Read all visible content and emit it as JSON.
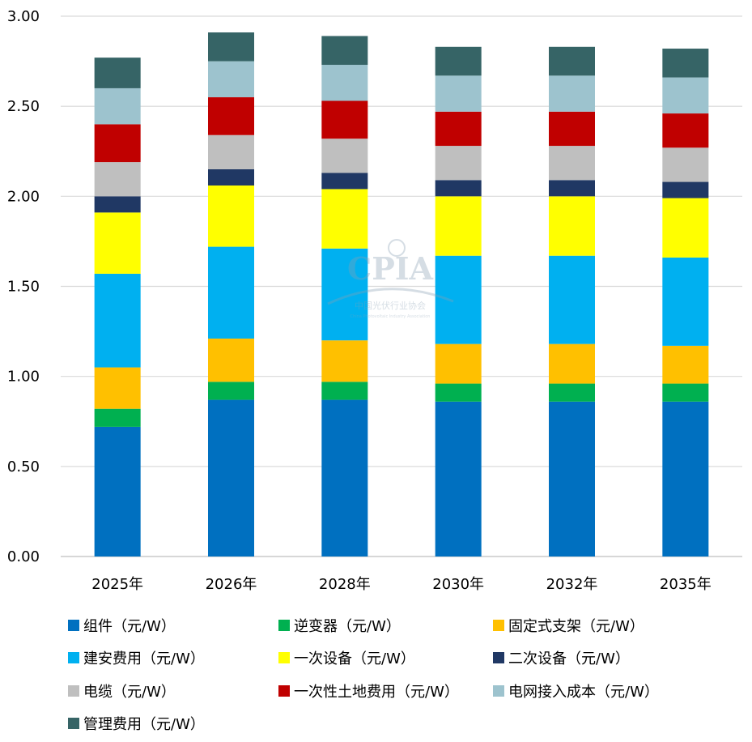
{
  "chart_data": {
    "type": "bar",
    "stacked": true,
    "categories": [
      "2025年",
      "2026年",
      "2028年",
      "2030年",
      "2032年",
      "2035年"
    ],
    "ylim": [
      0,
      3.0
    ],
    "yticks": [
      "0.00",
      "0.50",
      "1.00",
      "1.50",
      "2.00",
      "2.50",
      "3.00"
    ],
    "grid": true,
    "legend_position": "bottom",
    "series": [
      {
        "name": "组件（元/W）",
        "color": "#0070C0",
        "values": [
          0.72,
          0.87,
          0.87,
          0.86,
          0.86,
          0.86
        ]
      },
      {
        "name": "逆变器（元/W）",
        "color": "#00B050",
        "values": [
          0.1,
          0.1,
          0.1,
          0.1,
          0.1,
          0.1
        ]
      },
      {
        "name": "固定式支架（元/W）",
        "color": "#FFC000",
        "values": [
          0.23,
          0.24,
          0.23,
          0.22,
          0.22,
          0.21
        ]
      },
      {
        "name": "建安费用（元/W）",
        "color": "#00B0F0",
        "values": [
          0.52,
          0.51,
          0.51,
          0.49,
          0.49,
          0.49
        ]
      },
      {
        "name": "一次设备（元/W）",
        "color": "#FFFF00",
        "values": [
          0.34,
          0.34,
          0.33,
          0.33,
          0.33,
          0.33
        ]
      },
      {
        "name": "二次设备（元/W）",
        "color": "#203864",
        "values": [
          0.09,
          0.09,
          0.09,
          0.09,
          0.09,
          0.09
        ]
      },
      {
        "name": "电缆（元/W）",
        "color": "#BFBFBF",
        "values": [
          0.19,
          0.19,
          0.19,
          0.19,
          0.19,
          0.19
        ]
      },
      {
        "name": "一次性土地费用（元/W）",
        "color": "#C00000",
        "values": [
          0.21,
          0.21,
          0.21,
          0.19,
          0.19,
          0.19
        ]
      },
      {
        "name": "电网接入成本（元/W）",
        "color": "#9DC3CE",
        "values": [
          0.2,
          0.2,
          0.2,
          0.2,
          0.2,
          0.2
        ]
      },
      {
        "name": "管理费用（元/W）",
        "color": "#366466",
        "values": [
          0.17,
          0.16,
          0.16,
          0.16,
          0.16,
          0.16
        ]
      }
    ]
  },
  "watermark": {
    "logo_text": "CPIA",
    "org_name": "中国光伏行业协会",
    "org_name_en": "China Photovoltaic Industry Association"
  }
}
